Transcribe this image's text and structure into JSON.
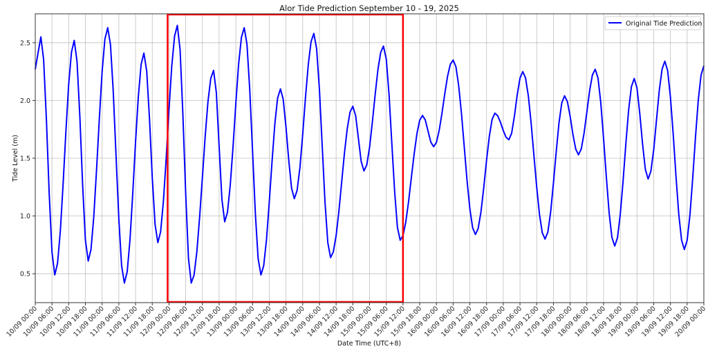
{
  "chart_data": {
    "type": "line",
    "title": "Alor Tide Prediction September 10 - 19, 2025",
    "xlabel": "Date Time (UTC+8)",
    "ylabel": "Tide Level (m)",
    "xlim": [
      "2025-09-10 00:00",
      "2025-09-20 00:00"
    ],
    "ylim": [
      0.25,
      2.75
    ],
    "yticks": [
      0.5,
      1.0,
      1.5,
      2.0,
      2.5
    ],
    "ytick_labels": [
      "0.5",
      "1.0",
      "1.5",
      "2.0",
      "2.5"
    ],
    "xtick_labels": [
      "10/09 00:00",
      "10/09 06:00",
      "10/09 12:00",
      "10/09 18:00",
      "11/09 00:00",
      "11/09 06:00",
      "11/09 12:00",
      "11/09 18:00",
      "12/09 00:00",
      "12/09 06:00",
      "12/09 12:00",
      "12/09 18:00",
      "13/09 00:00",
      "13/09 06:00",
      "13/09 12:00",
      "13/09 18:00",
      "14/09 00:00",
      "14/09 06:00",
      "14/09 12:00",
      "14/09 18:00",
      "15/09 00:00",
      "15/09 06:00",
      "15/09 12:00",
      "15/09 18:00",
      "16/09 00:00",
      "16/09 06:00",
      "16/09 12:00",
      "16/09 18:00",
      "17/09 00:00",
      "17/09 06:00",
      "17/09 12:00",
      "17/09 18:00",
      "18/09 00:00",
      "18/09 06:00",
      "18/09 12:00",
      "18/09 18:00",
      "19/09 00:00",
      "19/09 06:00",
      "19/09 12:00",
      "19/09 18:00",
      "20/09 00:00"
    ],
    "grid": true,
    "legend_position": "top-right",
    "series": [
      {
        "name": "Original Tide Prediction",
        "color": "#0000ff",
        "points": [
          [
            "2025-09-10 00:00",
            2.27
          ],
          [
            "2025-09-10 02:00",
            2.55
          ],
          [
            "2025-09-10 07:00",
            0.49
          ],
          [
            "2025-09-10 14:00",
            2.52
          ],
          [
            "2025-09-10 19:00",
            0.61
          ],
          [
            "2025-09-11 02:00",
            2.63
          ],
          [
            "2025-09-11 08:00",
            0.42
          ],
          [
            "2025-09-11 15:00",
            2.41
          ],
          [
            "2025-09-11 20:00",
            0.77
          ],
          [
            "2025-09-12 03:00",
            2.65
          ],
          [
            "2025-09-12 08:00",
            0.42
          ],
          [
            "2025-09-12 16:00",
            2.26
          ],
          [
            "2025-09-12 20:00",
            0.95
          ],
          [
            "2025-09-13 03:00",
            2.63
          ],
          [
            "2025-09-13 09:00",
            0.49
          ],
          [
            "2025-09-13 16:00",
            2.1
          ],
          [
            "2025-09-13 21:00",
            1.15
          ],
          [
            "2025-09-14 04:00",
            2.58
          ],
          [
            "2025-09-14 10:00",
            0.64
          ],
          [
            "2025-09-14 18:00",
            1.95
          ],
          [
            "2025-09-14 22:00",
            1.39
          ],
          [
            "2025-09-15 05:00",
            2.47
          ],
          [
            "2025-09-15 11:00",
            0.79
          ],
          [
            "2025-09-15 19:00",
            1.87
          ],
          [
            "2025-09-15 23:00",
            1.6
          ],
          [
            "2025-09-16 06:00",
            2.35
          ],
          [
            "2025-09-16 14:00",
            0.84
          ],
          [
            "2025-09-16 21:00",
            1.89
          ],
          [
            "2025-09-17 02:00",
            1.66
          ],
          [
            "2025-09-17 07:00",
            2.25
          ],
          [
            "2025-09-17 15:00",
            0.8
          ],
          [
            "2025-09-17 22:00",
            2.04
          ],
          [
            "2025-09-18 03:00",
            1.53
          ],
          [
            "2025-09-18 09:00",
            2.27
          ],
          [
            "2025-09-18 16:00",
            0.74
          ],
          [
            "2025-09-18 23:00",
            2.19
          ],
          [
            "2025-09-19 04:00",
            1.32
          ],
          [
            "2025-09-19 10:00",
            2.34
          ],
          [
            "2025-09-19 17:00",
            0.71
          ],
          [
            "2025-09-20 00:00",
            2.3
          ]
        ]
      }
    ],
    "highlight": {
      "x_start": "2025-09-11 23:30",
      "x_end": "2025-09-15 12:00",
      "color": "#ff0000"
    }
  }
}
